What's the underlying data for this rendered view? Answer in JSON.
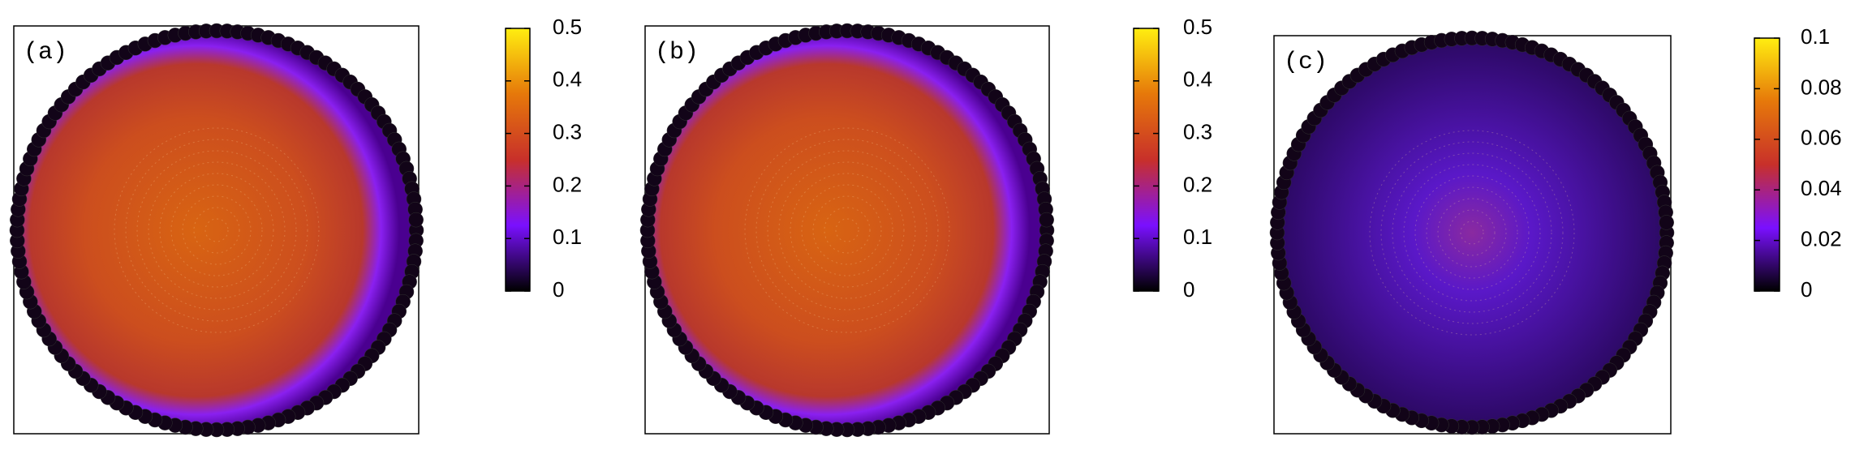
{
  "chart_data": [
    {
      "type": "heatmap",
      "label": "(a)",
      "colormap": [
        "#000000",
        "#7a10ff",
        "#c8302a",
        "#e6780a",
        "#ffee10"
      ],
      "clim": [
        0,
        0.5
      ],
      "cticks": [
        0,
        0.1,
        0.2,
        0.3,
        0.4,
        0.5
      ]
    },
    {
      "type": "heatmap",
      "label": "(b)",
      "colormap": [
        "#000000",
        "#7a10ff",
        "#c8302a",
        "#e6780a",
        "#ffee10"
      ],
      "clim": [
        0,
        0.5
      ],
      "cticks": [
        0,
        0.1,
        0.2,
        0.3,
        0.4,
        0.5
      ]
    },
    {
      "type": "heatmap",
      "label": "(c)",
      "colormap": [
        "#000000",
        "#7a10ff",
        "#c8302a",
        "#e6780a",
        "#ffee10"
      ],
      "clim": [
        0,
        0.1
      ],
      "cticks": [
        0,
        0.02,
        0.04,
        0.06,
        0.08,
        0.1
      ]
    }
  ]
}
